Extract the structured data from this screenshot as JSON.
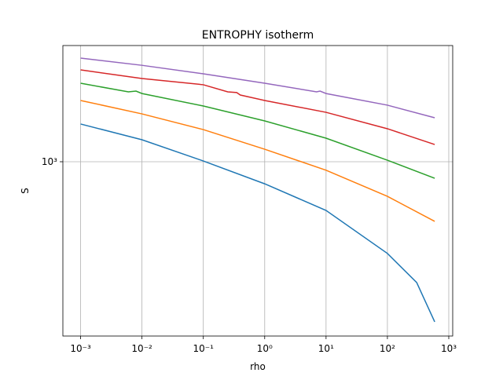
{
  "chart_data": {
    "type": "line",
    "title": "ENTROPHY isotherm",
    "xlabel": "rho",
    "ylabel": "S",
    "xscale": "log",
    "yscale": "log",
    "grid": true,
    "xlim": [
      0.000514,
      1159
    ],
    "ylim": [
      321,
      2133
    ],
    "xticks": [
      {
        "value": 0.001,
        "label": "10⁻³"
      },
      {
        "value": 0.01,
        "label": "10⁻²"
      },
      {
        "value": 0.1,
        "label": "10⁻¹"
      },
      {
        "value": 1,
        "label": "10⁰"
      },
      {
        "value": 10,
        "label": "10¹"
      },
      {
        "value": 100,
        "label": "10²"
      },
      {
        "value": 1000,
        "label": "10³"
      }
    ],
    "yticks": [
      {
        "value": 1000,
        "label": "10³"
      }
    ],
    "series": [
      {
        "color": "#1f77b4",
        "x": [
          0.001,
          0.01,
          0.1,
          1,
          10,
          100,
          300,
          590
        ],
        "values": [
          1279,
          1154,
          1005,
          866,
          728,
          550,
          455,
          352
        ]
      },
      {
        "color": "#ff7f0e",
        "x": [
          0.001,
          0.01,
          0.1,
          1,
          10,
          100,
          590
        ],
        "values": [
          1491,
          1366,
          1233,
          1085,
          946,
          798,
          678
        ]
      },
      {
        "color": "#2ca02c",
        "x": [
          0.001,
          0.006,
          0.008,
          0.01,
          0.1,
          1,
          10,
          100,
          590
        ],
        "values": [
          1668,
          1577,
          1585,
          1560,
          1438,
          1305,
          1166,
          1010,
          898
        ]
      },
      {
        "color": "#d62728",
        "x": [
          0.001,
          0.01,
          0.1,
          0.25,
          0.35,
          0.4,
          1,
          10,
          100,
          590
        ],
        "values": [
          1820,
          1720,
          1652,
          1577,
          1570,
          1545,
          1491,
          1380,
          1240,
          1119
        ]
      },
      {
        "color": "#9467bd",
        "x": [
          0.001,
          0.01,
          0.1,
          1,
          7,
          8,
          10,
          100,
          590
        ],
        "values": [
          1965,
          1875,
          1774,
          1668,
          1577,
          1585,
          1560,
          1446,
          1332
        ]
      }
    ]
  }
}
